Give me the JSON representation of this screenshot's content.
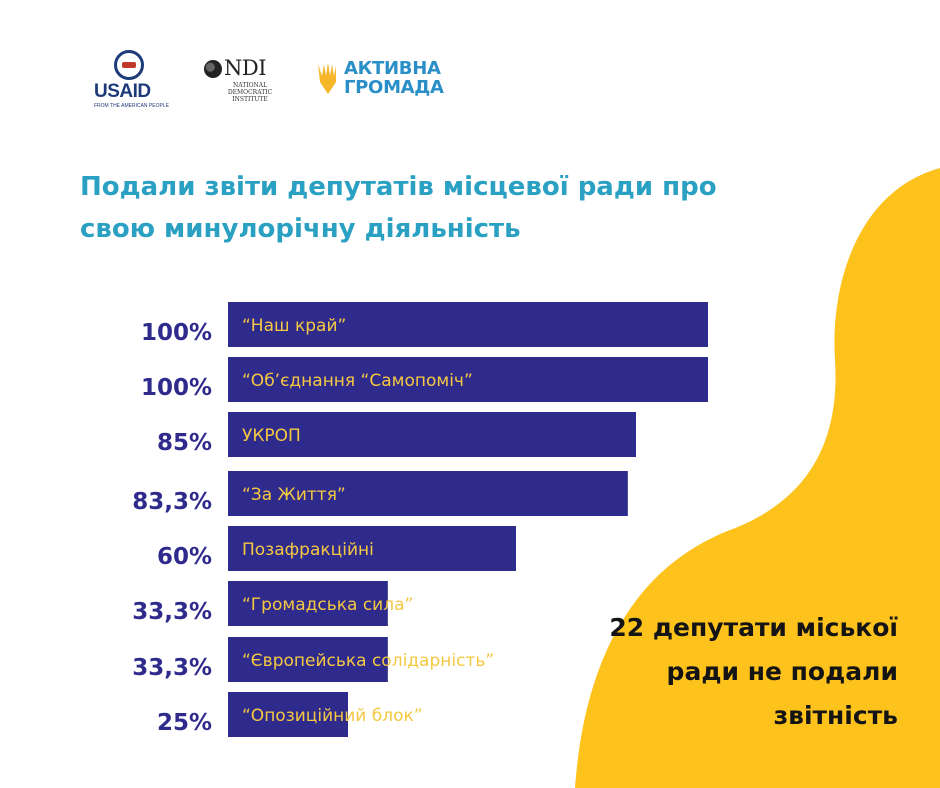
{
  "logos": {
    "usaid_word": "USAID",
    "usaid_tagline": "FROM THE AMERICAN PEOPLE",
    "ndi_word": "NDI",
    "ndi_subtitle": "NATIONAL DEMOCRATIC INSTITUTE",
    "ag_line1": "АКТИВНА",
    "ag_line2": "ГРОМАДА"
  },
  "colors": {
    "bar": "#2f2b8c",
    "bar_text": "#f5c842",
    "value_text": "#2f2b8c",
    "title": "#2aa0c2",
    "blob": "#fdc21c"
  },
  "chart_data": {
    "type": "bar",
    "orientation": "horizontal",
    "title": "Подали звіти депутатів місцевої ради про свою минулорічну діяльність",
    "categories": [
      "“Наш край”",
      "“Об’єднання “Самопоміч”",
      "УКРОП",
      "“За Життя”",
      "Позафракційні",
      "“Громадська сила”",
      "“Європейська солідарність”",
      "“Опозиційний блок”"
    ],
    "values": [
      100,
      100,
      85,
      83.3,
      60,
      33.3,
      33.3,
      25
    ],
    "value_labels": [
      "100%",
      "100%",
      "85%",
      "83,3%",
      "60%",
      "33,3%",
      "33,3%",
      "25%"
    ],
    "xlim": [
      0,
      100
    ],
    "grid": false,
    "legend": "none"
  },
  "callout": {
    "text": "22 депутати міської ради не подали звітність"
  }
}
